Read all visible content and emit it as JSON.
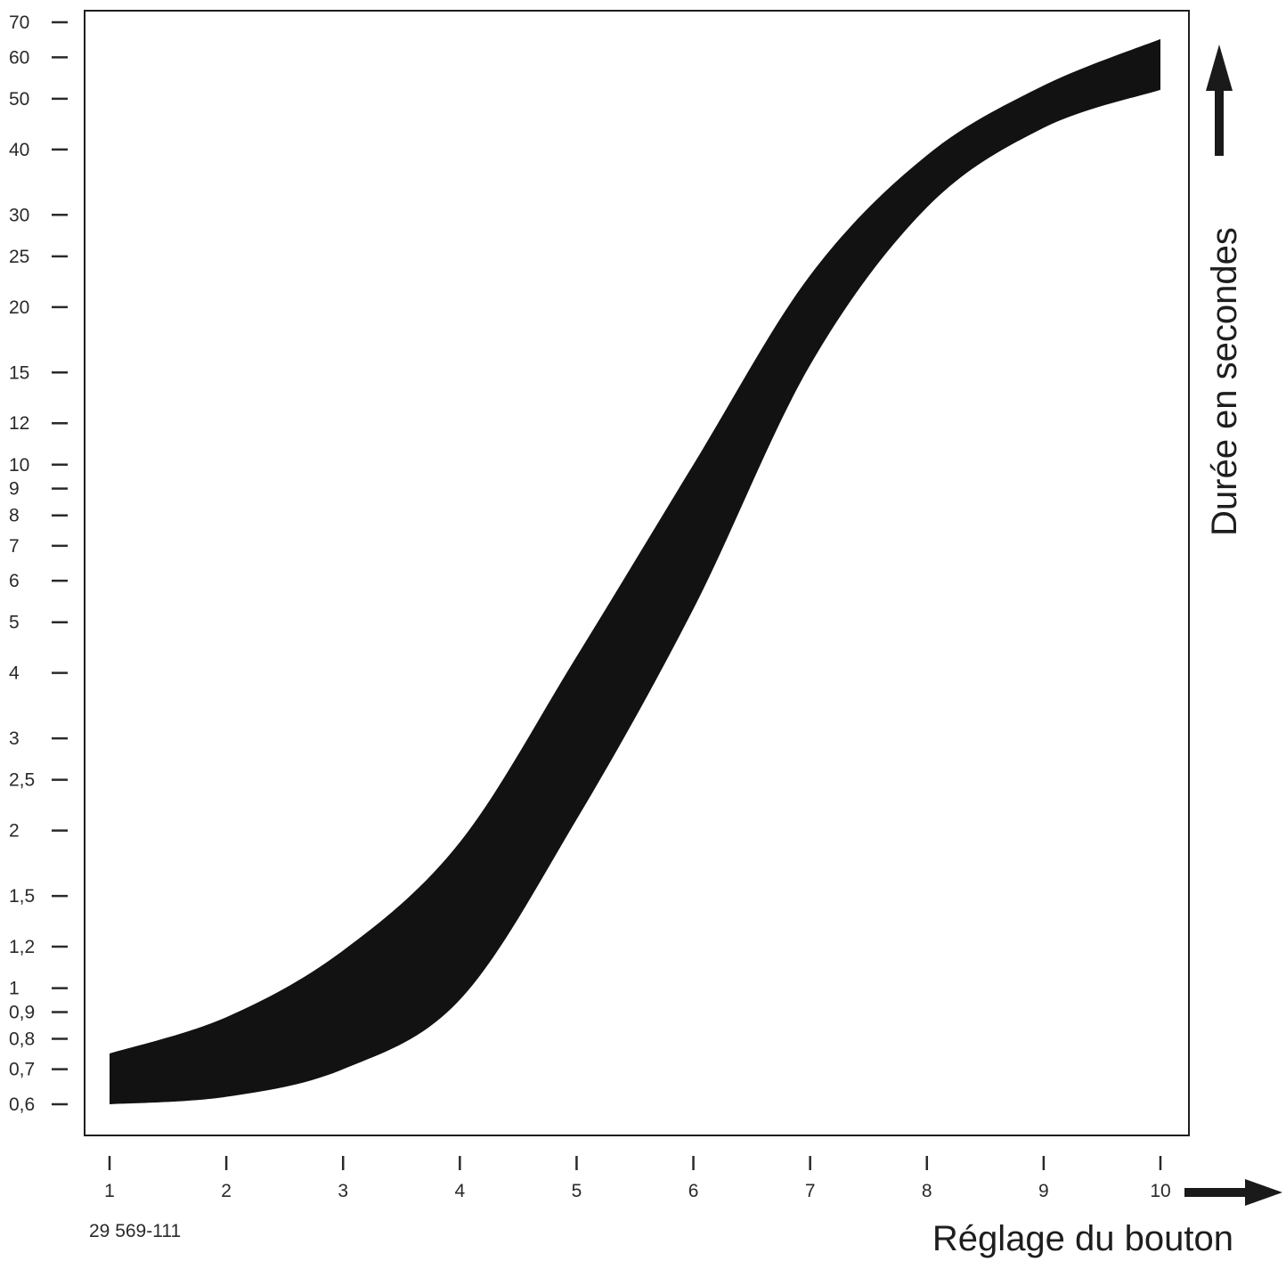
{
  "chart_data": {
    "type": "area",
    "title": "",
    "xlabel": "Réglage du bouton",
    "ylabel": "Durée en secondes",
    "yscale": "log",
    "ylim": [
      0.6,
      70
    ],
    "xlim": [
      1,
      10
    ],
    "grid": false,
    "x_ticks": [
      "1",
      "2",
      "3",
      "4",
      "5",
      "6",
      "7",
      "8",
      "9",
      "10"
    ],
    "y_ticks": [
      {
        "value": 70,
        "label": "70"
      },
      {
        "value": 60,
        "label": "60"
      },
      {
        "value": 50,
        "label": "50"
      },
      {
        "value": 40,
        "label": "40"
      },
      {
        "value": 30,
        "label": "30"
      },
      {
        "value": 25,
        "label": "25"
      },
      {
        "value": 20,
        "label": "20"
      },
      {
        "value": 15,
        "label": "15"
      },
      {
        "value": 12,
        "label": "12"
      },
      {
        "value": 10,
        "label": "10"
      },
      {
        "value": 9,
        "label": "9"
      },
      {
        "value": 8,
        "label": "8"
      },
      {
        "value": 7,
        "label": "7"
      },
      {
        "value": 6,
        "label": "6"
      },
      {
        "value": 5,
        "label": "5"
      },
      {
        "value": 4,
        "label": "4"
      },
      {
        "value": 3,
        "label": "3"
      },
      {
        "value": 2.5,
        "label": "2,5"
      },
      {
        "value": 2,
        "label": "2"
      },
      {
        "value": 1.5,
        "label": "1,5"
      },
      {
        "value": 1.2,
        "label": "1,2"
      },
      {
        "value": 1,
        "label": "1"
      },
      {
        "value": 0.9,
        "label": "0,9"
      },
      {
        "value": 0.8,
        "label": "0,8"
      },
      {
        "value": 0.7,
        "label": "0,7"
      },
      {
        "value": 0.6,
        "label": "0,6"
      }
    ],
    "band": {
      "color": "#121212",
      "x": [
        1,
        2,
        3,
        4,
        5,
        6,
        7,
        8,
        9,
        10
      ],
      "lower": [
        0.6,
        0.62,
        0.7,
        0.95,
        2.1,
        5.3,
        15.5,
        31,
        44,
        52
      ],
      "upper": [
        0.75,
        0.88,
        1.18,
        1.9,
        4.3,
        10,
        23,
        39,
        53,
        65
      ]
    }
  },
  "reference": "29 569-111"
}
